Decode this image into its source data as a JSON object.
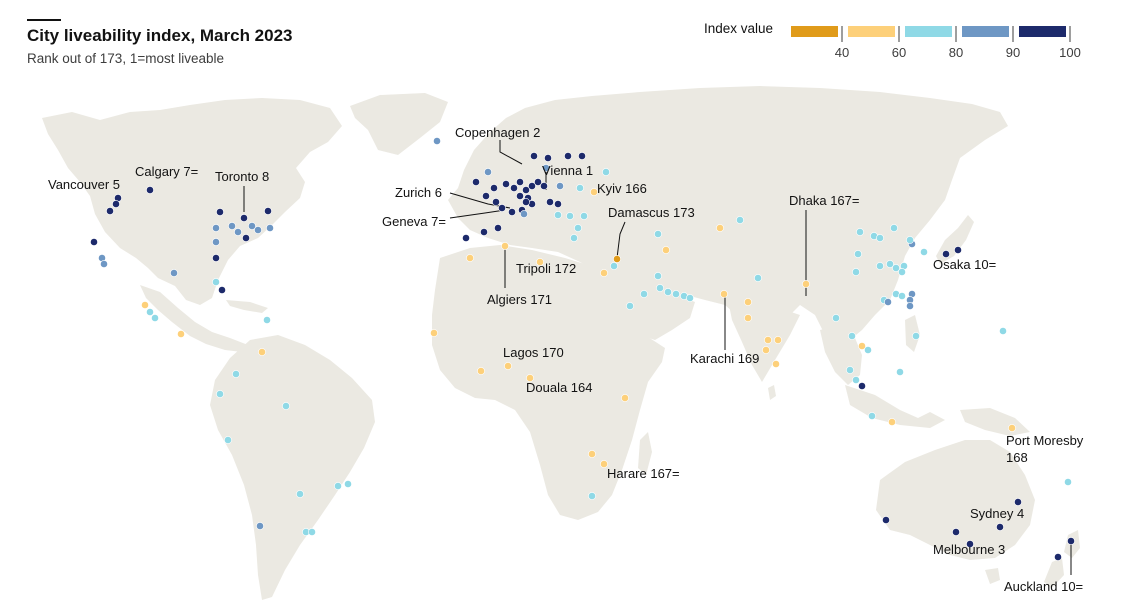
{
  "title": "City liveability index, March 2023",
  "subtitle": "Rank out of 173, 1=most liveable",
  "legend": {
    "title": "Index value",
    "ticks": [
      "40",
      "60",
      "80",
      "90",
      "100"
    ],
    "bins": [
      {
        "range": "<40",
        "color": "#e09b1a"
      },
      {
        "range": "40-60",
        "color": "#fdd07a"
      },
      {
        "range": "60-80",
        "color": "#8fd9e6"
      },
      {
        "range": "80-90",
        "color": "#6e97c4"
      },
      {
        "range": "90-100",
        "color": "#1d2a6b"
      }
    ]
  },
  "colors": {
    "land": "#ebe9e2",
    "ocean": "#ffffff",
    "leader": "#121212"
  },
  "labels": [
    {
      "text": "Copenhagen 2"
    },
    {
      "text": "Vienna 1"
    },
    {
      "text": "Calgary 7="
    },
    {
      "text": "Toronto 8"
    },
    {
      "text": "Vancouver 5"
    },
    {
      "text": "Zurich 6"
    },
    {
      "text": "Kyiv 166"
    },
    {
      "text": "Geneva 7="
    },
    {
      "text": "Damascus 173"
    },
    {
      "text": "Dhaka 167="
    },
    {
      "text": "Tripoli 172"
    },
    {
      "text": "Osaka 10="
    },
    {
      "text": "Algiers 171"
    },
    {
      "text": "Lagos 170"
    },
    {
      "text": "Karachi 169"
    },
    {
      "text": "Douala 164"
    },
    {
      "text": "Port Moresby"
    },
    {
      "text": "168"
    },
    {
      "text": "Harare 167="
    },
    {
      "text": "Sydney 4"
    },
    {
      "text": "Melbourne 3"
    },
    {
      "text": "Auckland 10="
    }
  ]
}
